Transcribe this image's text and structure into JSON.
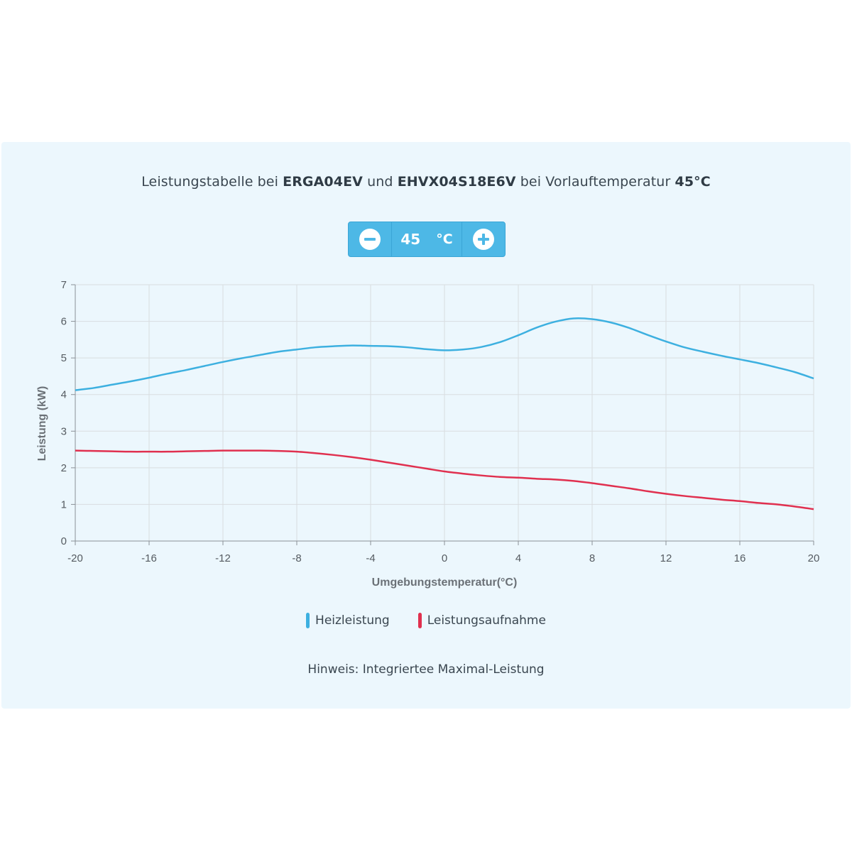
{
  "title": {
    "t1": "Leistungstabelle bei ",
    "model1": "ERGA04EV",
    "t2": " und ",
    "model2": "EHVX04S18E6V",
    "t3": " bei Vorlauftemperatur ",
    "temp": "45°C"
  },
  "stepper": {
    "value": "45",
    "unit": "°C"
  },
  "colors": {
    "heat": "#3db0e0",
    "power": "#e0304f",
    "panel": "#ecf7fd",
    "accent": "#4db8e6"
  },
  "chart_data": {
    "type": "line",
    "xlabel": "Umgebungstemperatur(°C)",
    "ylabel": "Leistung (kW)",
    "xlim": [
      -20,
      20
    ],
    "ylim": [
      0,
      7
    ],
    "xticks": [
      -20,
      -16,
      -12,
      -8,
      -4,
      0,
      4,
      8,
      12,
      16,
      20
    ],
    "yticks": [
      0,
      1,
      2,
      3,
      4,
      5,
      6,
      7
    ],
    "grid": true,
    "legend_position": "bottom",
    "x": [
      -20,
      -19,
      -18,
      -17,
      -16,
      -15,
      -14,
      -13,
      -12,
      -11,
      -10,
      -9,
      -8,
      -7,
      -6,
      -5,
      -4,
      -3,
      -2,
      -1,
      0,
      1,
      2,
      3,
      4,
      5,
      6,
      7,
      8,
      9,
      10,
      11,
      12,
      13,
      14,
      15,
      16,
      17,
      18,
      19,
      20
    ],
    "series": [
      {
        "name": "Heizleistung",
        "values": [
          4.12,
          4.18,
          4.27,
          4.36,
          4.46,
          4.57,
          4.67,
          4.78,
          4.89,
          4.99,
          5.08,
          5.17,
          5.23,
          5.29,
          5.32,
          5.34,
          5.33,
          5.32,
          5.29,
          5.24,
          5.21,
          5.23,
          5.3,
          5.43,
          5.62,
          5.83,
          5.99,
          6.08,
          6.06,
          5.97,
          5.82,
          5.63,
          5.45,
          5.29,
          5.17,
          5.06,
          4.96,
          4.86,
          4.74,
          4.61,
          4.44
        ]
      },
      {
        "name": "Leistungsaufnahme",
        "values": [
          2.47,
          2.46,
          2.45,
          2.44,
          2.44,
          2.44,
          2.45,
          2.46,
          2.47,
          2.47,
          2.47,
          2.46,
          2.44,
          2.4,
          2.35,
          2.29,
          2.22,
          2.14,
          2.06,
          1.98,
          1.9,
          1.84,
          1.79,
          1.75,
          1.73,
          1.7,
          1.68,
          1.64,
          1.58,
          1.51,
          1.44,
          1.36,
          1.29,
          1.23,
          1.18,
          1.13,
          1.09,
          1.04,
          1.0,
          0.94,
          0.87
        ]
      }
    ]
  },
  "note": "Hinweis: Integriertee Maximal-Leistung"
}
